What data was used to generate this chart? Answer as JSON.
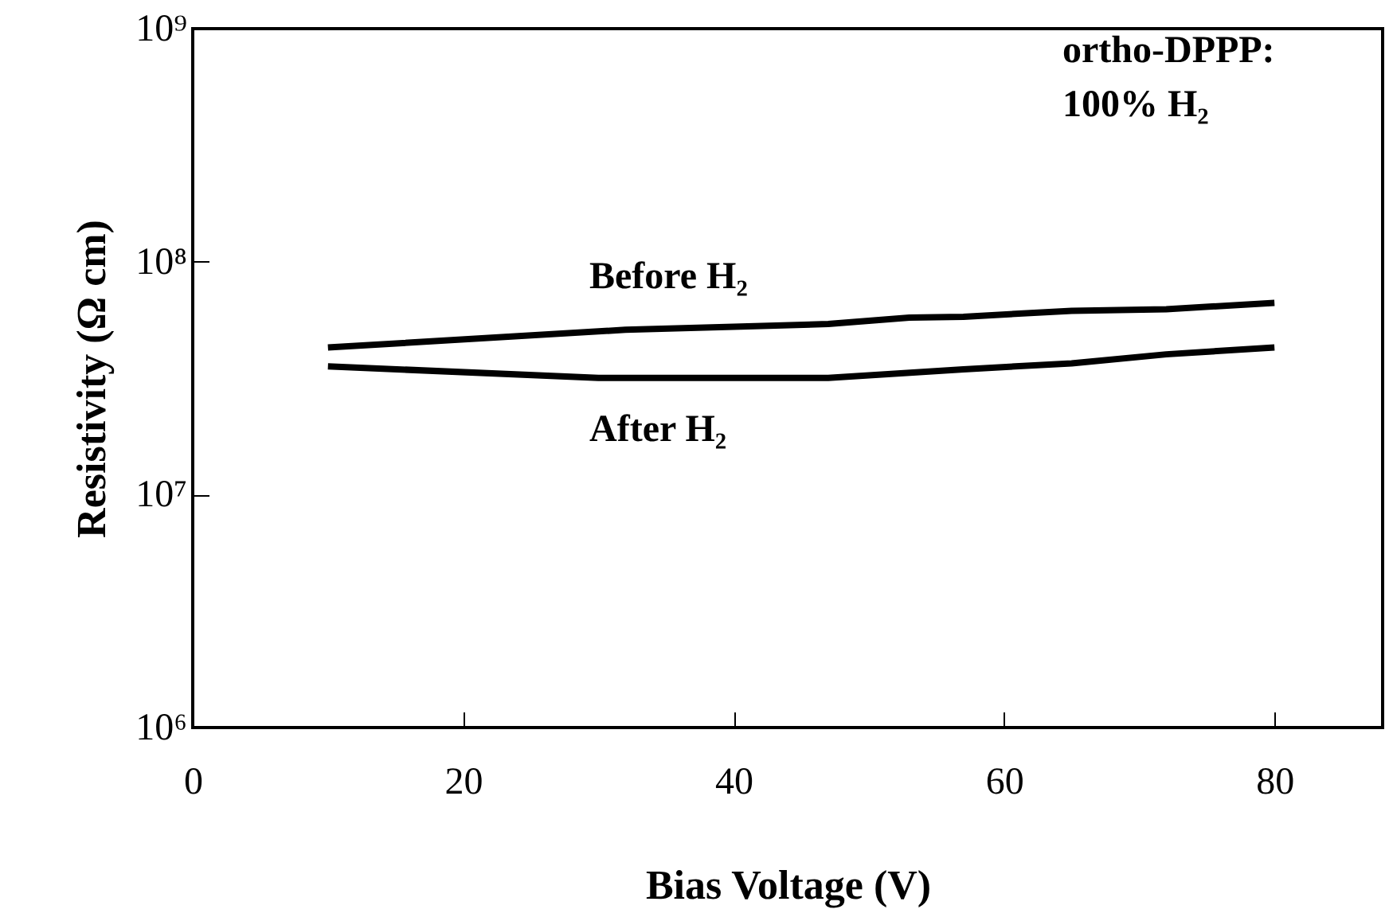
{
  "chart_data": {
    "type": "line",
    "xlabel": "Bias Voltage (V)",
    "ylabel": "Resistivity (Ω cm)",
    "log": "y",
    "grid": false,
    "marker": "none",
    "line_style": "solid",
    "xlim": [
      0,
      88
    ],
    "xticks": [
      0,
      20,
      40,
      60,
      80
    ],
    "ylim": [
      1000000,
      1000000000
    ],
    "yticks": [
      {
        "value": 1000000,
        "label": "10⁶"
      },
      {
        "value": 10000000,
        "label": "10⁷"
      },
      {
        "value": 100000000,
        "label": "10⁸"
      },
      {
        "value": 1000000000,
        "label": "10⁹"
      }
    ],
    "series": [
      {
        "color": "#000000",
        "x": [
          10,
          32,
          40,
          47,
          53,
          57,
          65,
          72,
          80
        ],
        "values": [
          42800000,
          51000000,
          52500000,
          54000000,
          57500000,
          58000000,
          61500000,
          62500000,
          66500000
        ]
      },
      {
        "color": "#000000",
        "x": [
          10,
          30,
          40,
          47,
          57,
          65,
          72,
          80
        ],
        "values": [
          35500000,
          31700000,
          31700000,
          31700000,
          34500000,
          36600000,
          40000000,
          42800000
        ]
      }
    ],
    "annotations": [
      "Before H₂",
      "After H₂",
      "ortho-DPPP:\n100% H₂"
    ]
  }
}
